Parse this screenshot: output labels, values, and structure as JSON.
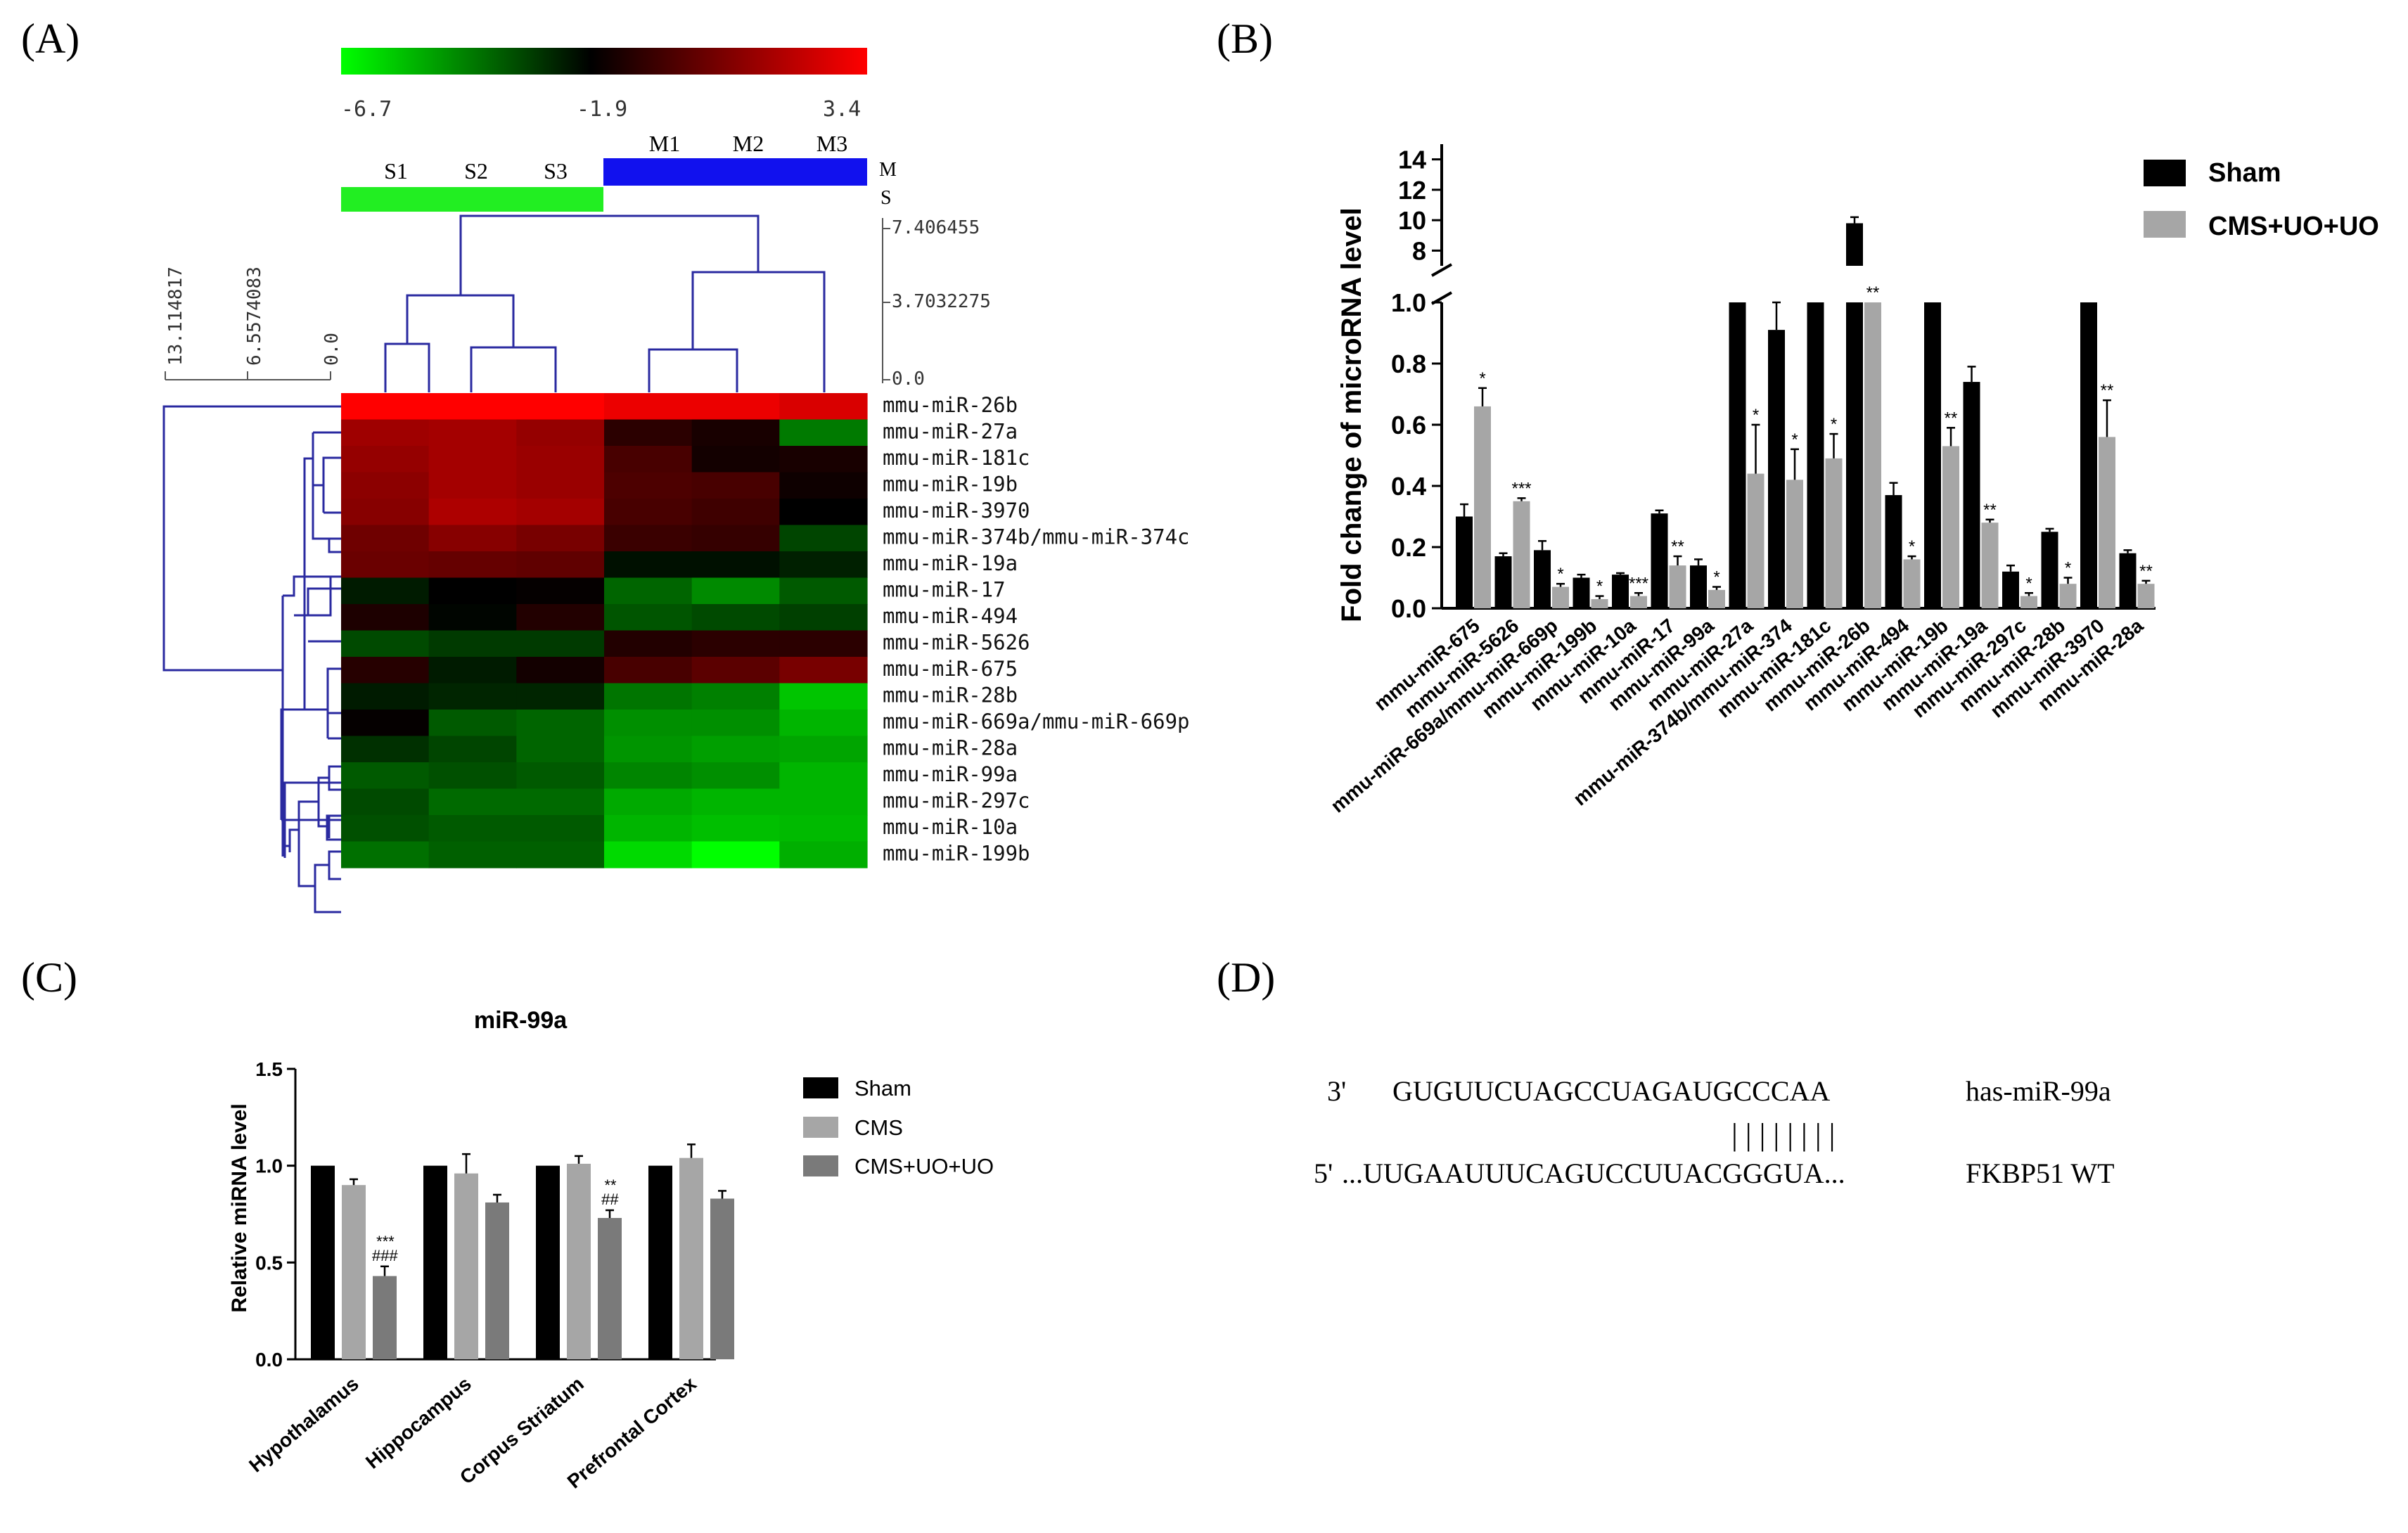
{
  "figure": {
    "panel_letters": [
      "(A)",
      "(B)",
      "(C)",
      "(D)"
    ]
  },
  "panel_a": {
    "colorbar": {
      "ticks": [
        "-6.7",
        "-1.9",
        "3.4"
      ],
      "colors": [
        "#00ff00",
        "#000000",
        "#ff0000"
      ]
    },
    "groups": [
      {
        "code": "S",
        "color": "#22ee22",
        "samples": [
          "S1",
          "S2",
          "S3"
        ]
      },
      {
        "code": "M",
        "color": "#1111ee",
        "samples": [
          "M1",
          "M2",
          "M3"
        ]
      }
    ],
    "group_legend": [
      "M",
      "S"
    ],
    "column_scale": [
      "7.406455",
      "3.7032275",
      "0.0"
    ],
    "row_scale": [
      "13.114817",
      "6.5574083",
      "0.0"
    ],
    "rows": [
      "mmu-miR-26b",
      "mmu-miR-27a",
      "mmu-miR-181c",
      "mmu-miR-19b",
      "mmu-miR-3970",
      "mmu-miR-374b/mmu-miR-374c",
      "mmu-miR-19a",
      "mmu-miR-17",
      "mmu-miR-494",
      "mmu-miR-5626",
      "mmu-miR-675",
      "mmu-miR-28b",
      "mmu-miR-669a/mmu-miR-669p",
      "mmu-miR-28a",
      "mmu-miR-99a",
      "mmu-miR-297c",
      "mmu-miR-10a",
      "mmu-miR-199b"
    ],
    "matrix": [
      [
        3.4,
        3.4,
        3.4,
        3.0,
        3.0,
        2.6
      ],
      [
        1.4,
        1.5,
        1.2,
        -1.0,
        -1.4,
        -4.2
      ],
      [
        1.2,
        1.5,
        1.3,
        -0.4,
        -1.5,
        -1.4
      ],
      [
        1.0,
        1.5,
        1.3,
        -0.3,
        -0.4,
        -1.6
      ],
      [
        0.9,
        1.7,
        1.5,
        -0.4,
        -0.6,
        -1.9
      ],
      [
        0.4,
        0.9,
        0.6,
        -0.7,
        -0.8,
        -3.2
      ],
      [
        0.3,
        0.2,
        0.1,
        -2.2,
        -2.2,
        -2.5
      ],
      [
        -2.4,
        -1.9,
        -1.8,
        -3.8,
        -4.5,
        -3.6
      ],
      [
        -1.3,
        -2.0,
        -1.2,
        -3.5,
        -3.3,
        -3.1
      ],
      [
        -3.3,
        -3.0,
        -3.0,
        -1.2,
        -1.0,
        -1.0
      ],
      [
        -1.1,
        -2.4,
        -1.5,
        -0.4,
        0.0,
        0.6
      ],
      [
        -2.4,
        -2.6,
        -2.6,
        -4.1,
        -4.3,
        -5.6
      ],
      [
        -1.8,
        -3.6,
        -3.8,
        -4.6,
        -4.6,
        -5.3
      ],
      [
        -2.8,
        -3.2,
        -3.8,
        -4.7,
        -4.9,
        -5.0
      ],
      [
        -3.6,
        -3.4,
        -3.6,
        -4.4,
        -4.6,
        -5.3
      ],
      [
        -3.3,
        -3.9,
        -3.9,
        -5.1,
        -5.3,
        -5.3
      ],
      [
        -3.4,
        -3.6,
        -3.6,
        -5.3,
        -5.5,
        -5.4
      ],
      [
        -4.0,
        -3.7,
        -3.7,
        -6.0,
        -6.7,
        -5.2
      ]
    ]
  },
  "chart_data": [
    {
      "type": "bar",
      "panel": "B",
      "ylabel": "Fold change of microRNA level",
      "y_break": [
        1.0,
        7.0
      ],
      "lower_ylim": [
        0,
        1.0
      ],
      "lower_ticks": [
        "0.0",
        "0.2",
        "0.4",
        "0.6",
        "0.8",
        "1.0"
      ],
      "upper_ylim": [
        7.0,
        15.0
      ],
      "upper_ticks": [
        "8",
        "10",
        "12",
        "14"
      ],
      "categories": [
        "mmu-miR-675",
        "mmu-miR-5626",
        "mmu-miR-669a/mmu-miR-669p",
        "mmu-miR-199b",
        "mmu-miR-10a",
        "mmu-miR-17",
        "mmu-miR-99a",
        "mmu-miR-27a",
        "mmu-miR-374b/mmu-miR-374",
        "mmu-miR-181c",
        "mmu-miR-26b",
        "mmu-miR-494",
        "mmu-miR-19b",
        "mmu-miR-19a",
        "mmu-miR-297c",
        "mmu-miR-28b",
        "mmu-miR-3970",
        "mmu-miR-28a"
      ],
      "series": [
        {
          "name": "Sham",
          "color": "#000000",
          "values": [
            0.3,
            0.17,
            0.19,
            0.1,
            0.11,
            0.31,
            0.14,
            1.0,
            0.91,
            1.0,
            9.8,
            0.37,
            1.0,
            0.74,
            0.12,
            0.25,
            1.0,
            0.18
          ],
          "errors": [
            0.04,
            0.01,
            0.03,
            0.01,
            0.005,
            0.01,
            0.02,
            0,
            0.1,
            0,
            0.4,
            0.04,
            0,
            0.05,
            0.02,
            0.01,
            0,
            0.01
          ]
        },
        {
          "name": "CMS+UO+UO",
          "color": "#a6a6a6",
          "values": [
            0.66,
            0.35,
            0.07,
            0.03,
            0.04,
            0.14,
            0.06,
            0.44,
            0.42,
            0.49,
            1.0,
            0.16,
            0.53,
            0.28,
            0.04,
            0.08,
            0.56,
            0.08
          ],
          "errors": [
            0.06,
            0.01,
            0.01,
            0.01,
            0.01,
            0.03,
            0.01,
            0.16,
            0.1,
            0.08,
            0,
            0.01,
            0.06,
            0.01,
            0.01,
            0.02,
            0.12,
            0.01
          ],
          "significance": [
            "*",
            "***",
            "*",
            "*",
            "***",
            "**",
            "*",
            "*",
            "*",
            "*",
            "**",
            "*",
            "**",
            "**",
            "*",
            "*",
            "**",
            "**"
          ]
        }
      ]
    },
    {
      "type": "bar",
      "panel": "C",
      "title": "miR-99a",
      "ylabel": "Relative miRNA level",
      "ylim": [
        0,
        1.5
      ],
      "yticks": [
        "0.0",
        "0.5",
        "1.0",
        "1.5"
      ],
      "categories": [
        "Hypothalamus",
        "Hippocampus",
        "Corpus Striatum",
        "Prefrontal Cortex"
      ],
      "series": [
        {
          "name": "Sham",
          "color": "#000000",
          "values": [
            1.0,
            1.0,
            1.0,
            1.0
          ],
          "errors": [
            0,
            0,
            0,
            0
          ]
        },
        {
          "name": "CMS",
          "color": "#a6a6a6",
          "values": [
            0.9,
            0.96,
            1.01,
            1.04
          ],
          "errors": [
            0.03,
            0.1,
            0.04,
            0.07
          ]
        },
        {
          "name": "CMS+UO+UO",
          "color": "#7a7a7a",
          "values": [
            0.43,
            0.81,
            0.73,
            0.83
          ],
          "errors": [
            0.05,
            0.04,
            0.04,
            0.04
          ]
        }
      ],
      "annotations": [
        {
          "category": "Hypothalamus",
          "lines": [
            "***",
            "###"
          ]
        },
        {
          "category": "Corpus Striatum",
          "lines": [
            "**",
            "##"
          ]
        }
      ]
    }
  ],
  "panel_d": {
    "mirna": {
      "prime": "3'",
      "sequence": "GUGUUCUAGCCUAGAUGCCCAA",
      "label": "has-miR-99a"
    },
    "pairing": "| | | | | | | |",
    "target": {
      "prime": "5'",
      "sequence": "...UUGAAUUUCAGUCCUUACGGGUA...",
      "label": "FKBP51 WT"
    }
  }
}
